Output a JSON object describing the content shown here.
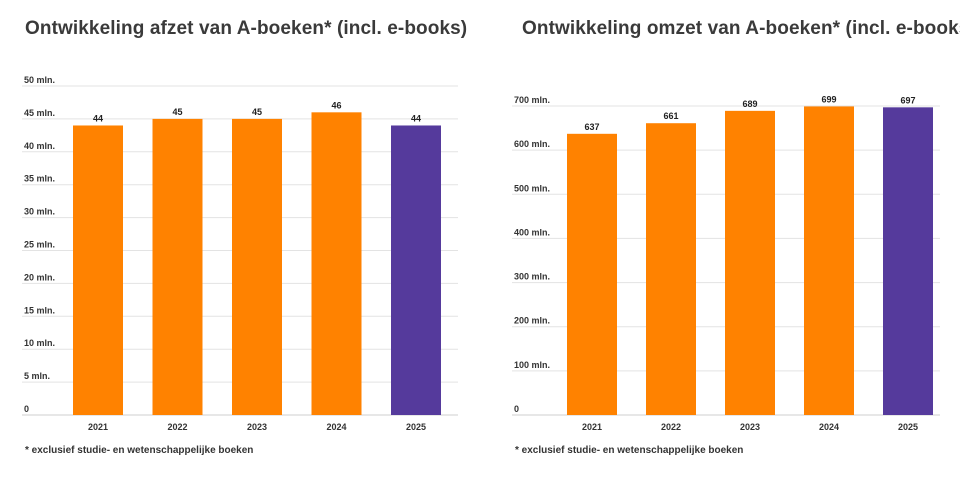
{
  "chart_data": [
    {
      "type": "bar",
      "title": "Ontwikkeling afzet van A-boeken* (incl. e-books)",
      "xlabel": "",
      "ylabel": "",
      "categories": [
        "2021",
        "2022",
        "2023",
        "2024",
        "2025"
      ],
      "values": [
        44,
        45,
        45,
        46,
        44
      ],
      "value_labels": [
        "44",
        "45",
        "45",
        "46",
        "44"
      ],
      "ylim": [
        0,
        50
      ],
      "yticks": [
        0,
        5,
        10,
        15,
        20,
        25,
        30,
        35,
        40,
        45,
        50
      ],
      "ytick_labels": [
        "0",
        "5 mln.",
        "10 mln.",
        "15 mln.",
        "20 mln.",
        "25 mln.",
        "30 mln.",
        "35 mln.",
        "40 mln.",
        "45 mln.",
        "50 mln."
      ],
      "bar_colors": [
        "#ff8200",
        "#ff8200",
        "#ff8200",
        "#ff8200",
        "#553a9c"
      ],
      "grid": true,
      "footnote": "* exclusief studie- en wetenschappelijke boeken"
    },
    {
      "type": "bar",
      "title": "Ontwikkeling omzet van A-boeken* (incl. e-books)",
      "xlabel": "",
      "ylabel": "",
      "categories": [
        "2021",
        "2022",
        "2023",
        "2024",
        "2025"
      ],
      "values": [
        637,
        661,
        689,
        699,
        697
      ],
      "value_labels": [
        "637",
        "661",
        "689",
        "699",
        "697"
      ],
      "ylim": [
        0,
        700
      ],
      "yticks": [
        0,
        100,
        200,
        300,
        400,
        500,
        600,
        700
      ],
      "ytick_labels": [
        "0",
        "100 mln.",
        "200 mln.",
        "300 mln.",
        "400 mln.",
        "500 mln.",
        "600 mln.",
        "700 mln."
      ],
      "bar_colors": [
        "#ff8200",
        "#ff8200",
        "#ff8200",
        "#ff8200",
        "#553a9c"
      ],
      "grid": true,
      "footnote": "* exclusief studie- en wetenschappelijke boeken"
    }
  ]
}
